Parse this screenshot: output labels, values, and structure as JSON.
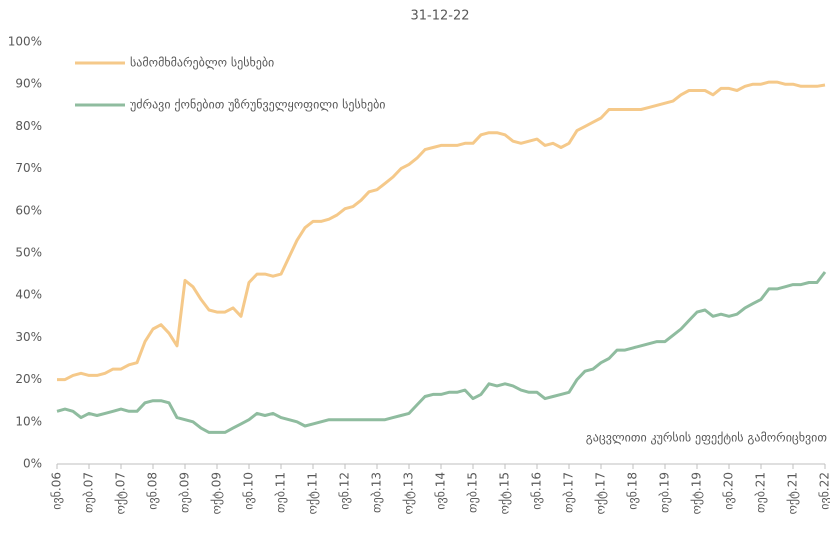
{
  "chart_data": {
    "type": "line",
    "title": "31-12-22",
    "annotation": "გაცვლითი კურსის ეფექტის გამორიცხვით",
    "legend": "upper left",
    "ylim": [
      0,
      100
    ],
    "yticks": [
      {
        "value": 0,
        "label": "0%"
      },
      {
        "value": 10,
        "label": "10%"
      },
      {
        "value": 20,
        "label": "20%"
      },
      {
        "value": 30,
        "label": "30%"
      },
      {
        "value": 40,
        "label": "40%"
      },
      {
        "value": 50,
        "label": "50%"
      },
      {
        "value": 60,
        "label": "60%"
      },
      {
        "value": 70,
        "label": "70%"
      },
      {
        "value": 80,
        "label": "80%"
      },
      {
        "value": 90,
        "label": "90%"
      },
      {
        "value": 100,
        "label": "100%"
      }
    ],
    "categories": [
      "ივნ.06",
      null,
      null,
      null,
      "თებ.07",
      null,
      null,
      null,
      "ოქტ.07",
      null,
      null,
      null,
      "ივნ.08",
      null,
      null,
      null,
      "თებ.09",
      null,
      null,
      null,
      "ოქტ.09",
      null,
      null,
      null,
      "ივნ.10",
      null,
      null,
      null,
      "თებ.11",
      null,
      null,
      null,
      "ოქტ.11",
      null,
      null,
      null,
      "ივნ.12",
      null,
      null,
      null,
      "თებ.13",
      null,
      null,
      null,
      "ოქტ.13",
      null,
      null,
      null,
      "ივნ.14",
      null,
      null,
      null,
      "თებ.15",
      null,
      null,
      null,
      "ოქტ.15",
      null,
      null,
      null,
      "ივნ.16",
      null,
      null,
      null,
      "თებ.17",
      null,
      null,
      null,
      "ოქტ.17",
      null,
      null,
      null,
      "ივნ.18",
      null,
      null,
      null,
      "თებ.19",
      null,
      null,
      null,
      "ოქტ.19",
      null,
      null,
      null,
      "ივნ.20",
      null,
      null,
      null,
      "თებ.21",
      null,
      null,
      null,
      "ოქტ.21",
      null,
      null,
      null,
      "ივნ.22"
    ],
    "series": [
      {
        "name": "სამომხმარებლო სესხები",
        "color": "#f5c98a",
        "values": [
          20,
          20,
          21,
          21.5,
          21,
          21,
          21.5,
          22.5,
          22.5,
          23.5,
          24,
          29,
          32,
          33,
          31,
          28,
          43.5,
          42,
          39,
          36.5,
          36,
          36,
          37,
          35,
          43,
          45,
          45,
          44.5,
          45,
          49,
          53,
          56,
          57.5,
          57.5,
          58,
          59,
          60.5,
          61,
          62.5,
          64.5,
          65,
          66.5,
          68,
          70,
          71,
          72.5,
          74.5,
          75,
          75.5,
          75.5,
          75.5,
          76,
          76,
          78,
          78.5,
          78.5,
          78,
          76.5,
          76,
          76.5,
          77,
          75.5,
          76,
          75,
          76,
          79,
          80,
          81,
          82,
          84,
          84,
          84,
          84,
          84,
          84.5,
          85,
          85.5,
          86,
          87.5,
          88.5,
          88.5,
          88.5,
          87.5,
          89,
          89,
          88.5,
          89.5,
          90,
          90,
          90.5,
          90.5,
          90,
          90,
          89.5,
          89.5,
          89.5,
          89.8
        ]
      },
      {
        "name": "უძრავი ქონებით უზრუნველყოფილი სესხები",
        "color": "#8fbc9f",
        "values": [
          12.5,
          13,
          12.5,
          11,
          12,
          11.5,
          12,
          12.5,
          13,
          12.5,
          12.5,
          14.5,
          15,
          15,
          14.5,
          11,
          10.5,
          10,
          8.5,
          7.5,
          7.5,
          7.5,
          8.5,
          9.5,
          10.5,
          12,
          11.5,
          12,
          11,
          10.5,
          10,
          9,
          9.5,
          10,
          10.5,
          10.5,
          10.5,
          10.5,
          10.5,
          10.5,
          10.5,
          10.5,
          11,
          11.5,
          12,
          14,
          16,
          16.5,
          16.5,
          17,
          17,
          17.5,
          15.5,
          16.5,
          19,
          18.5,
          19,
          18.5,
          17.5,
          17,
          17,
          15.5,
          16,
          16.5,
          17,
          20,
          22,
          22.5,
          24,
          25,
          27,
          27,
          27.5,
          28,
          28.5,
          29,
          29,
          30.5,
          32,
          34,
          36,
          36.5,
          35,
          35.5,
          35,
          35.5,
          37,
          38,
          39,
          41.5,
          41.5,
          42,
          42.5,
          42.5,
          43,
          43,
          45.5
        ]
      }
    ]
  }
}
